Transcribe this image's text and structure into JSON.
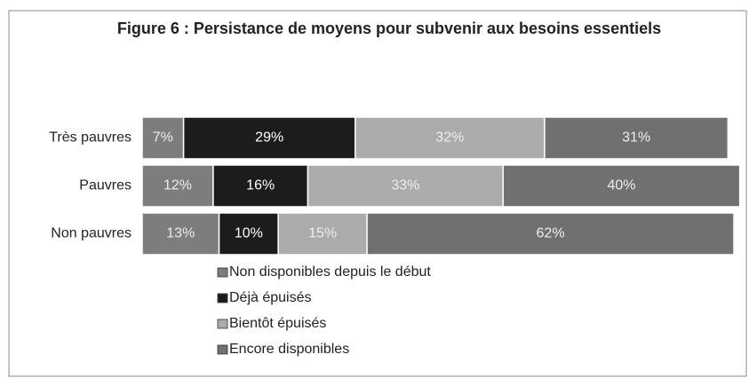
{
  "chart_data": {
    "type": "stacked_barh",
    "title": "Figure 6 : Persistance de moyens pour subvenir aux besoins essentiels",
    "categories": [
      "Très pauvres",
      "Pauvres",
      "Non pauvres"
    ],
    "series": [
      {
        "name": "Non disponibles depuis le début",
        "color": "#7d7d7d",
        "values": [
          7,
          12,
          13
        ],
        "value_labels": [
          "7%",
          "12%",
          "13%"
        ]
      },
      {
        "name": "Déjà épuisés",
        "color": "#1c1c1c",
        "values": [
          29,
          16,
          10
        ],
        "value_labels": [
          "29%",
          "16%",
          "10%"
        ]
      },
      {
        "name": "Bientôt épuisés",
        "color": "#ababab",
        "values": [
          32,
          33,
          15
        ],
        "value_labels": [
          "32%",
          "33%",
          "15%"
        ]
      },
      {
        "name": "Encore disponibles",
        "color": "#707070",
        "values": [
          31,
          40,
          62
        ],
        "value_labels": [
          "31%",
          "40%",
          "62%"
        ]
      }
    ],
    "xlim": [
      0,
      100
    ],
    "legend": "bottom"
  }
}
